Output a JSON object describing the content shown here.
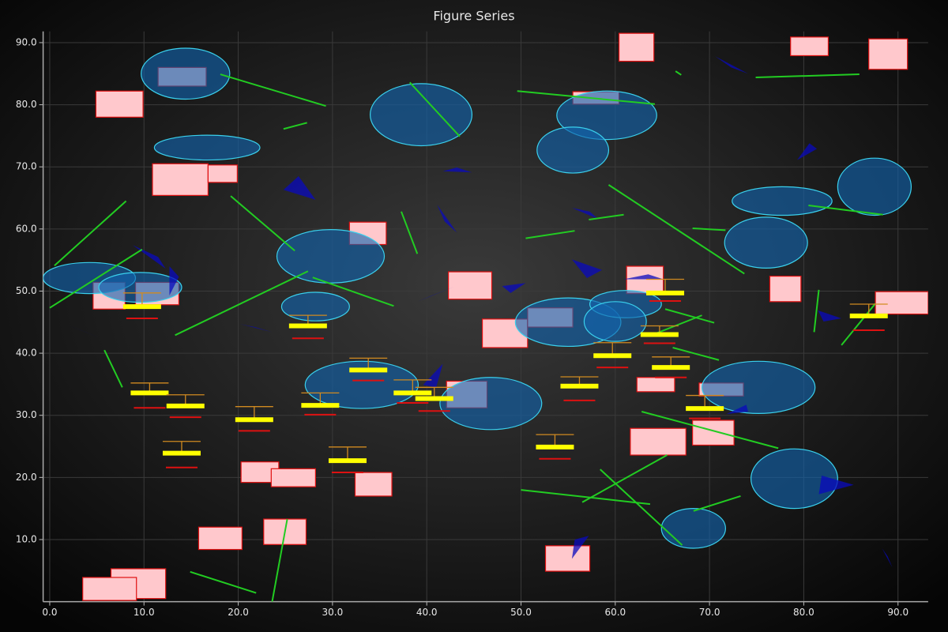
{
  "chart_data": {
    "type": "figure",
    "title": "Figure Series",
    "xlim": [
      -0.7,
      93.2
    ],
    "ylim": [
      0,
      91.8
    ],
    "grid": true,
    "xticks": [
      {
        "value": 0,
        "label": "0.0"
      },
      {
        "value": 10,
        "label": "10.0"
      },
      {
        "value": 20,
        "label": "20.0"
      },
      {
        "value": 30,
        "label": "30.0"
      },
      {
        "value": 40,
        "label": "40.0"
      },
      {
        "value": 50,
        "label": "50.0"
      },
      {
        "value": 60,
        "label": "60.0"
      },
      {
        "value": 70,
        "label": "70.0"
      },
      {
        "value": 80,
        "label": "80.0"
      },
      {
        "value": 90,
        "label": "90.0"
      }
    ],
    "yticks": [
      {
        "value": 10,
        "label": "10.0"
      },
      {
        "value": 20,
        "label": "20.0"
      },
      {
        "value": 30,
        "label": "30.0"
      },
      {
        "value": 40,
        "label": "40.0"
      },
      {
        "value": 50,
        "label": "50.0"
      },
      {
        "value": 60,
        "label": "60.0"
      },
      {
        "value": 70,
        "label": "70.0"
      },
      {
        "value": 80,
        "label": "80.0"
      },
      {
        "value": 90,
        "label": "90.0"
      }
    ],
    "rectangles": [
      [
        4.9,
        78.0,
        9.9,
        82.2
      ],
      [
        60.4,
        87.0,
        64.1,
        91.5
      ],
      [
        78.6,
        87.9,
        82.6,
        90.9
      ],
      [
        86.9,
        85.7,
        91.0,
        90.6
      ],
      [
        10.9,
        65.4,
        16.8,
        70.5
      ],
      [
        16.8,
        67.5,
        19.9,
        70.3
      ],
      [
        31.8,
        57.5,
        35.7,
        61.1
      ],
      [
        42.3,
        48.7,
        46.9,
        53.1
      ],
      [
        45.9,
        40.9,
        50.7,
        45.5
      ],
      [
        61.2,
        49.6,
        65.1,
        54.0
      ],
      [
        76.4,
        48.3,
        79.7,
        52.4
      ],
      [
        87.6,
        46.3,
        93.2,
        49.9
      ],
      [
        62.3,
        33.8,
        66.3,
        36.1
      ],
      [
        61.6,
        23.6,
        67.5,
        27.9
      ],
      [
        68.2,
        25.2,
        72.6,
        29.2
      ],
      [
        20.3,
        19.2,
        24.3,
        22.5
      ],
      [
        23.5,
        18.5,
        28.2,
        21.4
      ],
      [
        32.4,
        17.0,
        36.3,
        20.8
      ],
      [
        15.8,
        8.4,
        20.4,
        12.0
      ],
      [
        22.7,
        9.2,
        27.2,
        13.3
      ],
      [
        6.5,
        0.5,
        12.3,
        5.3
      ],
      [
        3.5,
        0.2,
        9.2,
        3.9
      ],
      [
        52.6,
        4.9,
        57.3,
        9.0
      ],
      [
        4.6,
        47.1,
        8.0,
        51.4
      ],
      [
        9.1,
        47.8,
        13.7,
        51.4
      ],
      [
        11.5,
        83.0,
        16.6,
        86.0
      ],
      [
        55.5,
        80.1,
        60.4,
        82.1
      ],
      [
        50.7,
        44.2,
        55.5,
        47.3
      ],
      [
        42.1,
        31.2,
        46.4,
        35.5
      ],
      [
        68.9,
        33.1,
        73.6,
        35.2
      ]
    ],
    "ellipses": [
      [
        14.4,
        85.0,
        4.7,
        4.1
      ],
      [
        39.4,
        78.4,
        5.4,
        5.0
      ],
      [
        59.1,
        78.3,
        5.3,
        3.9
      ],
      [
        55.5,
        72.7,
        3.8,
        3.7
      ],
      [
        16.7,
        73.1,
        5.6,
        2.0
      ],
      [
        87.5,
        66.8,
        3.9,
        4.6
      ],
      [
        77.7,
        64.5,
        5.3,
        2.3
      ],
      [
        76.0,
        57.8,
        4.4,
        4.1
      ],
      [
        29.8,
        55.6,
        5.7,
        4.3
      ],
      [
        4.2,
        52.1,
        4.9,
        2.5
      ],
      [
        9.6,
        50.6,
        4.4,
        2.4
      ],
      [
        28.2,
        47.5,
        3.6,
        2.3
      ],
      [
        55.0,
        45.0,
        5.6,
        3.9
      ],
      [
        61.1,
        47.9,
        3.8,
        2.2
      ],
      [
        60.0,
        45.1,
        3.3,
        3.2
      ],
      [
        33.1,
        34.9,
        6.0,
        3.8
      ],
      [
        46.8,
        31.9,
        5.4,
        4.2
      ],
      [
        75.2,
        34.5,
        6.0,
        4.2
      ],
      [
        79.0,
        19.8,
        4.6,
        4.8
      ],
      [
        68.3,
        11.8,
        3.4,
        3.2
      ]
    ],
    "lines": [
      [
        18.1,
        84.9,
        29.3,
        79.8
      ],
      [
        24.8,
        76.1,
        27.3,
        77.1
      ],
      [
        38.2,
        83.6,
        43.5,
        74.9
      ],
      [
        49.6,
        82.2,
        64.2,
        80.1
      ],
      [
        66.4,
        85.4,
        67.0,
        84.8
      ],
      [
        74.9,
        84.4,
        85.9,
        84.9
      ],
      [
        0.5,
        54.1,
        8.1,
        64.5
      ],
      [
        0.0,
        47.3,
        9.8,
        56.7
      ],
      [
        19.2,
        65.3,
        26.0,
        56.5
      ],
      [
        37.3,
        62.8,
        39.0,
        56.0
      ],
      [
        50.5,
        58.5,
        55.7,
        59.7
      ],
      [
        57.2,
        61.5,
        60.9,
        62.3
      ],
      [
        59.3,
        67.1,
        73.7,
        52.8
      ],
      [
        68.2,
        60.1,
        71.7,
        59.8
      ],
      [
        80.5,
        63.8,
        88.4,
        62.3
      ],
      [
        13.3,
        42.9,
        27.4,
        53.2
      ],
      [
        27.9,
        52.2,
        36.5,
        47.6
      ],
      [
        5.8,
        40.5,
        7.7,
        34.5
      ],
      [
        65.3,
        47.1,
        70.5,
        44.9
      ],
      [
        64.5,
        43.3,
        69.2,
        46.1
      ],
      [
        66.1,
        40.9,
        71.0,
        38.9
      ],
      [
        81.6,
        50.2,
        81.1,
        43.4
      ],
      [
        84.0,
        41.3,
        87.6,
        48.0
      ],
      [
        62.8,
        30.6,
        77.3,
        24.7
      ],
      [
        50.0,
        18.0,
        63.7,
        15.7
      ],
      [
        56.5,
        16.0,
        65.5,
        23.6
      ],
      [
        58.4,
        21.3,
        67.1,
        9.1
      ],
      [
        68.3,
        14.6,
        73.3,
        17.0
      ],
      [
        14.9,
        4.8,
        21.9,
        1.4
      ],
      [
        23.6,
        0.0,
        25.2,
        13.3
      ]
    ],
    "triangles": [
      [
        70.6,
        87.8,
        72.3,
        86.0,
        74.1,
        85.0
      ],
      [
        79.3,
        71.1,
        80.6,
        73.8,
        81.4,
        72.9
      ],
      [
        24.8,
        66.3,
        26.4,
        68.5,
        28.2,
        64.7
      ],
      [
        41.7,
        69.3,
        43.2,
        69.9,
        44.8,
        69.1
      ],
      [
        41.1,
        63.9,
        41.9,
        61.2,
        43.2,
        59.4
      ],
      [
        55.4,
        63.4,
        57.3,
        62.8,
        58.2,
        61.6
      ],
      [
        55.4,
        55.1,
        58.6,
        53.4,
        57.0,
        52.1
      ],
      [
        8.8,
        57.4,
        11.5,
        55.5,
        12.3,
        53.6
      ],
      [
        12.7,
        54.0,
        13.7,
        52.3,
        12.7,
        49.3
      ],
      [
        60.9,
        51.9,
        63.5,
        52.7,
        65.1,
        51.9
      ],
      [
        48.0,
        50.8,
        50.5,
        51.3,
        48.9,
        49.7
      ],
      [
        39.0,
        48.3,
        42.9,
        50.7,
        40.4,
        49.2
      ],
      [
        1.8,
        44.6,
        3.8,
        43.4,
        5.3,
        42.5
      ],
      [
        20.2,
        44.7,
        21.8,
        44.2,
        23.6,
        43.4
      ],
      [
        81.5,
        46.9,
        84.0,
        45.6,
        82.1,
        45.1
      ],
      [
        39.6,
        34.9,
        41.7,
        38.3,
        41.0,
        34.5
      ],
      [
        71.8,
        30.2,
        73.9,
        31.7,
        74.1,
        30.6
      ],
      [
        55.4,
        6.9,
        55.7,
        10.0,
        57.2,
        10.6
      ],
      [
        81.9,
        20.3,
        85.3,
        18.8,
        81.6,
        17.3
      ],
      [
        88.3,
        8.6,
        88.9,
        7.3,
        89.4,
        5.5
      ]
    ],
    "markers": [
      [
        9.8,
        47.5,
        45.6,
        49.7
      ],
      [
        10.6,
        33.6,
        31.2,
        35.2
      ],
      [
        14.4,
        31.5,
        29.7,
        33.3
      ],
      [
        14.0,
        23.9,
        21.6,
        25.8
      ],
      [
        21.7,
        29.3,
        27.5,
        31.4
      ],
      [
        27.4,
        44.4,
        42.4,
        46.1
      ],
      [
        28.7,
        31.6,
        30.1,
        33.6
      ],
      [
        31.6,
        22.7,
        20.8,
        24.9
      ],
      [
        33.8,
        37.3,
        35.6,
        39.2
      ],
      [
        38.5,
        33.6,
        32.0,
        35.7
      ],
      [
        40.8,
        32.7,
        30.7,
        34.5
      ],
      [
        53.6,
        24.9,
        23.0,
        26.9
      ],
      [
        56.2,
        34.7,
        32.4,
        36.2
      ],
      [
        59.7,
        39.6,
        37.7,
        41.7
      ],
      [
        65.3,
        49.7,
        48.4,
        51.9
      ],
      [
        64.7,
        43.0,
        41.6,
        44.4
      ],
      [
        65.9,
        37.7,
        36.1,
        39.4
      ],
      [
        69.5,
        31.1,
        29.5,
        33.2
      ],
      [
        86.9,
        46.0,
        43.7,
        47.9
      ]
    ]
  }
}
